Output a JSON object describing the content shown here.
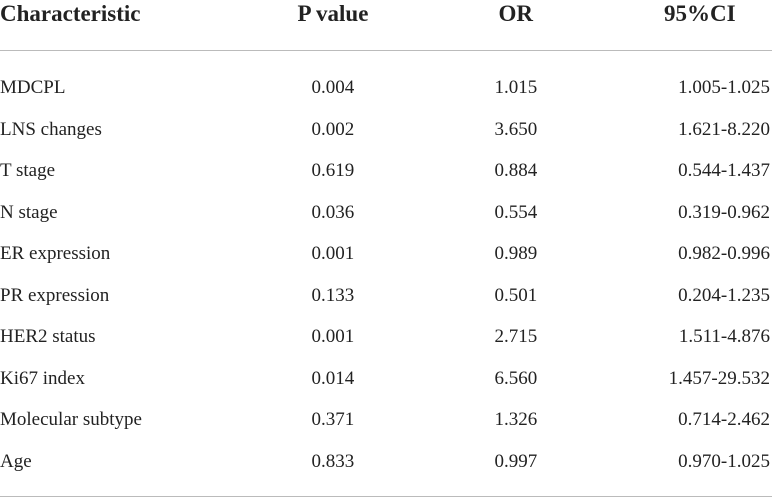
{
  "table": {
    "header": [
      "Characteristic",
      "P value",
      "OR",
      "95%CI"
    ],
    "rows": [
      [
        "MDCPL",
        "0.004",
        "1.015",
        "1.005-1.025"
      ],
      [
        "LNS changes",
        "0.002",
        "3.650",
        "1.621-8.220"
      ],
      [
        "T stage",
        "0.619",
        "0.884",
        "0.544-1.437"
      ],
      [
        "N stage",
        "0.036",
        "0.554",
        "0.319-0.962"
      ],
      [
        "ER expression",
        "0.001",
        "0.989",
        "0.982-0.996"
      ],
      [
        "PR expression",
        "0.133",
        "0.501",
        "0.204-1.235"
      ],
      [
        "HER2 status",
        "0.001",
        "2.715",
        "1.511-4.876"
      ],
      [
        "Ki67 index",
        "0.014",
        "6.560",
        "1.457-29.532"
      ],
      [
        "Molecular subtype",
        "0.371",
        "1.326",
        "0.714-2.462"
      ],
      [
        "Age",
        "0.833",
        "0.997",
        "0.970-1.025"
      ]
    ]
  }
}
